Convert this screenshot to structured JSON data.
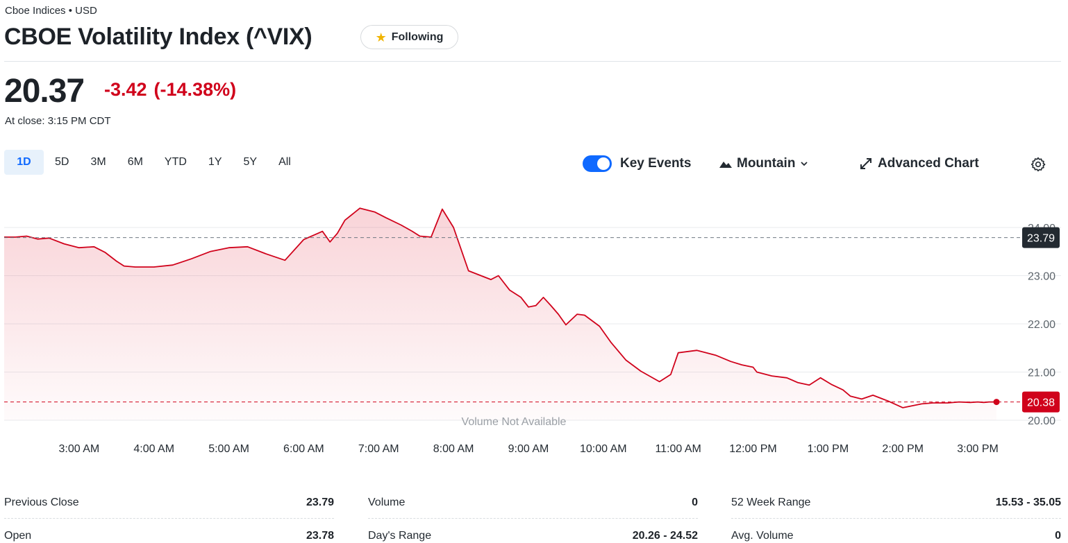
{
  "header": {
    "exchange": "Cboe Indices • USD",
    "title": "CBOE Volatility Index (^VIX)",
    "follow_label": "Following",
    "follow_icon": "star-icon"
  },
  "quote": {
    "price": "20.37",
    "change": "-3.42",
    "change_pct": "(-14.38%)",
    "close_time": "At close: 3:15 PM CDT"
  },
  "colors": {
    "accent": "#0f69ff",
    "negative": "#d0021b",
    "line": "#d0021b"
  },
  "controls": {
    "ranges": [
      {
        "label": "1D",
        "active": true
      },
      {
        "label": "5D",
        "active": false
      },
      {
        "label": "3M",
        "active": false
      },
      {
        "label": "6M",
        "active": false
      },
      {
        "label": "YTD",
        "active": false
      },
      {
        "label": "1Y",
        "active": false
      },
      {
        "label": "5Y",
        "active": false
      },
      {
        "label": "All",
        "active": false
      }
    ],
    "key_events_label": "Key Events",
    "key_events_on": true,
    "chart_type_label": "Mountain",
    "advanced_label": "Advanced Chart",
    "settings_icon": "gear-icon"
  },
  "chart_data": {
    "type": "area",
    "x_ticks": [
      "3:00 AM",
      "4:00 AM",
      "5:00 AM",
      "6:00 AM",
      "7:00 AM",
      "8:00 AM",
      "9:00 AM",
      "10:00 AM",
      "11:00 AM",
      "12:00 PM",
      "1:00 PM",
      "2:00 PM",
      "3:00 PM"
    ],
    "y_ticks": [
      "20.00",
      "21.00",
      "22.00",
      "23.00",
      "24.00"
    ],
    "ylim": [
      20.0,
      24.0
    ],
    "previous_close": 23.79,
    "previous_close_label": "23.79",
    "last_value": 20.38,
    "last_label": "20.38",
    "volume_note": "Volume Not Available",
    "grid": true,
    "x_hours": [
      2.0,
      2.15,
      2.3,
      2.45,
      2.6,
      2.8,
      3.0,
      3.2,
      3.35,
      3.5,
      3.6,
      3.75,
      4.0,
      4.25,
      4.5,
      4.75,
      5.0,
      5.25,
      5.5,
      5.75,
      6.0,
      6.25,
      6.35,
      6.45,
      6.55,
      6.75,
      6.95,
      7.1,
      7.3,
      7.45,
      7.55,
      7.7,
      7.85,
      8.0,
      8.2,
      8.5,
      8.6,
      8.75,
      8.9,
      9.0,
      9.1,
      9.2,
      9.3,
      9.4,
      9.5,
      9.65,
      9.75,
      9.95,
      10.1,
      10.3,
      10.5,
      10.75,
      10.9,
      11.0,
      11.25,
      11.5,
      11.7,
      11.85,
      12.0,
      12.05,
      12.25,
      12.45,
      12.6,
      12.75,
      12.9,
      13.05,
      13.2,
      13.3,
      13.45,
      13.6,
      13.8,
      14.0,
      14.25,
      14.4,
      14.6,
      14.75,
      14.9,
      15.0,
      15.08,
      15.15,
      15.25
    ],
    "values": [
      23.8,
      23.8,
      23.82,
      23.76,
      23.78,
      23.66,
      23.58,
      23.6,
      23.48,
      23.3,
      23.2,
      23.18,
      23.18,
      23.22,
      23.35,
      23.5,
      23.58,
      23.6,
      23.45,
      23.32,
      23.75,
      23.92,
      23.7,
      23.88,
      24.15,
      24.4,
      24.32,
      24.2,
      24.05,
      23.92,
      23.82,
      23.8,
      24.38,
      24.0,
      23.1,
      22.92,
      23.0,
      22.7,
      22.55,
      22.35,
      22.38,
      22.55,
      22.38,
      22.2,
      21.98,
      22.2,
      22.18,
      21.95,
      21.62,
      21.25,
      21.02,
      20.8,
      20.95,
      21.4,
      21.45,
      21.35,
      21.22,
      21.15,
      21.1,
      21.0,
      20.92,
      20.88,
      20.78,
      20.73,
      20.88,
      20.74,
      20.63,
      20.5,
      20.44,
      20.52,
      20.4,
      20.26,
      20.34,
      20.36,
      20.36,
      20.38,
      20.37,
      20.38,
      20.37,
      20.38,
      20.38
    ]
  },
  "stats": [
    [
      {
        "label": "Previous Close",
        "value": "23.79"
      },
      {
        "label": "Open",
        "value": "23.78"
      }
    ],
    [
      {
        "label": "Volume",
        "value": "0"
      },
      {
        "label": "Day's Range",
        "value": "20.26 - 24.52"
      }
    ],
    [
      {
        "label": "52 Week Range",
        "value": "15.53 - 35.05"
      },
      {
        "label": "Avg. Volume",
        "value": "0"
      }
    ]
  ]
}
